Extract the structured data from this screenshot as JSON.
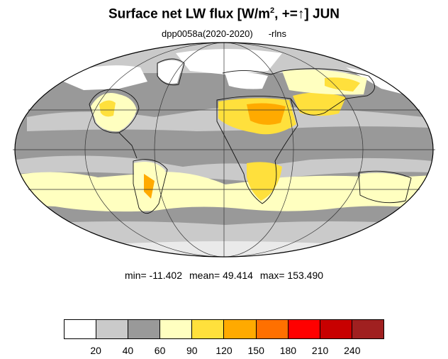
{
  "title": {
    "prefix": "Surface net LW flux [W/m",
    "sup": "2",
    "mid": ", +=",
    "arrow": "↑",
    "suffix": "]  JUN"
  },
  "subtitle": {
    "run": "dpp0058a(2020-2020)",
    "var": "-rlns"
  },
  "stats": {
    "min": "min= -11.402",
    "mean": "mean=  49.414",
    "max": "max= 153.490"
  },
  "colorbar": {
    "colors": [
      "#ffffff",
      "#cacaca",
      "#999999",
      "#ffffc0",
      "#ffe03c",
      "#ffaa00",
      "#ff7000",
      "#ff0000",
      "#c80000",
      "#a02020"
    ],
    "labels": [
      "20",
      "40",
      "60",
      "90",
      "120",
      "150",
      "180",
      "210",
      "240"
    ]
  },
  "colors": {
    "ocean_mid": "#999999",
    "ocean_light": "#cacaca",
    "low_flux": "#ffffff",
    "pale": "#ffffc0",
    "yellow": "#ffe03c",
    "orange": "#ffaa00"
  }
}
